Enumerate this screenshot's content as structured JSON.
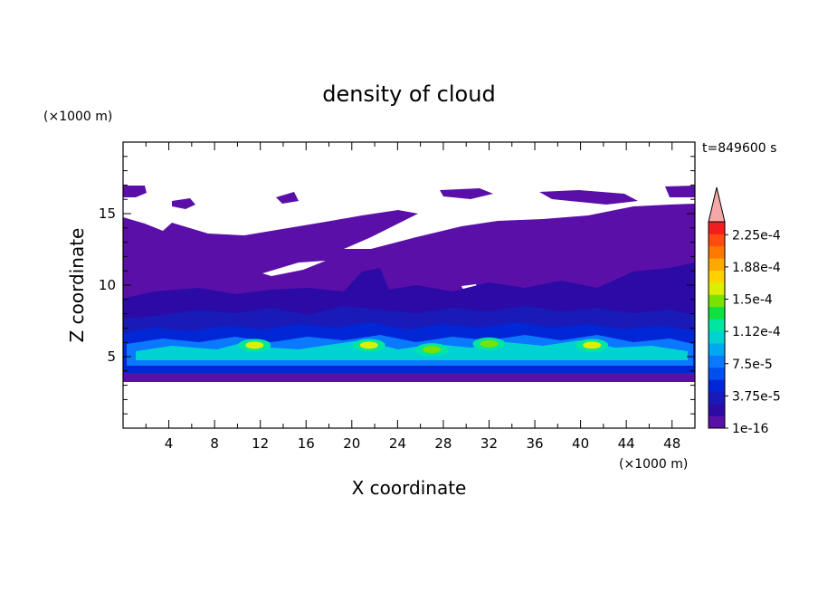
{
  "chart_data": {
    "type": "heatmap",
    "title": "density of cloud",
    "time_label": "t=849600 s",
    "xlabel": "X coordinate",
    "ylabel": "Z coordinate",
    "x_unit": "(×1000 m)",
    "y_unit": "(×1000 m)",
    "xlim": [
      0,
      50
    ],
    "ylim": [
      0,
      20
    ],
    "x_ticks": [
      4,
      8,
      12,
      16,
      20,
      24,
      28,
      32,
      36,
      40,
      44,
      48
    ],
    "y_ticks": [
      5,
      10,
      15
    ],
    "colorbar": {
      "labels": [
        "1e-16",
        "3.75e-5",
        "7.5e-5",
        "1.12e-4",
        "1.5e-4",
        "1.88e-4",
        "2.25e-4"
      ],
      "label_values": [
        0,
        3.75e-05,
        7.5e-05,
        0.0001125,
        0.00015,
        0.0001875,
        0.000225
      ],
      "max": 0.00024,
      "extend": "max",
      "colors": [
        "#5a0fa8",
        "#2b0aa6",
        "#1a1ab8",
        "#0026d6",
        "#0050ee",
        "#0a78ff",
        "#00a8f0",
        "#00d2d2",
        "#00e6a0",
        "#10e040",
        "#7ae200",
        "#dcef00",
        "#ffd200",
        "#ffa800",
        "#ff7800",
        "#ff4a10",
        "#f01e1e"
      ],
      "extend_color": "#f4a8a8"
    },
    "field_levels_bottom_to_top": [
      {
        "z_from": 3.4,
        "z_to": 3.9,
        "density_index": 1
      },
      {
        "z_from": 3.9,
        "z_to": 4.5,
        "density_index": 4
      },
      {
        "z_from": 4.5,
        "z_to": 6.2,
        "density_index": 7
      },
      {
        "z_from": 6.2,
        "z_to": 7.0,
        "density_index": 3
      },
      {
        "z_from": 7.0,
        "z_to": 10.5,
        "density_index": 2
      },
      {
        "z_from": 10.5,
        "z_to": 17.0,
        "density_index": 0
      }
    ],
    "bright_cores": [
      {
        "x": 11.5,
        "z": 5.8,
        "density_index": 11
      },
      {
        "x": 21.5,
        "z": 5.8,
        "density_index": 11
      },
      {
        "x": 27.0,
        "z": 5.5,
        "density_index": 10
      },
      {
        "x": 32.0,
        "z": 5.9,
        "density_index": 10
      },
      {
        "x": 41.0,
        "z": 5.8,
        "density_index": 11
      }
    ]
  }
}
